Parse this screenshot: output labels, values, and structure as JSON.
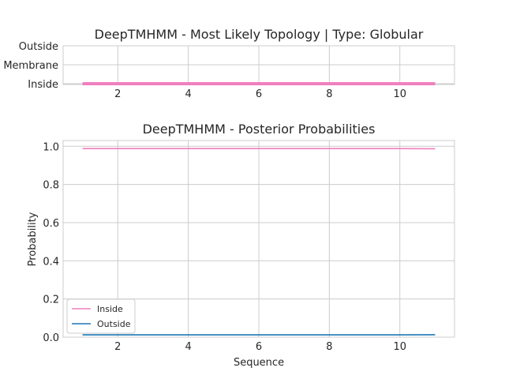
{
  "colors": {
    "inside": "#f07fbf",
    "outside": "#1f77b4",
    "grid": "#cccccc",
    "text": "#262626"
  },
  "chart_data": [
    {
      "type": "line",
      "title": "DeepTMHMM - Most Likely Topology | Type: Globular",
      "xlabel": "",
      "ylabel": "",
      "xlim": [
        0.45,
        11.55
      ],
      "xticks": [
        2,
        4,
        6,
        8,
        10
      ],
      "yticks": [
        "Inside",
        "Membrane",
        "Outside"
      ],
      "grid": true,
      "series": [
        {
          "x": [
            1,
            11
          ],
          "y": [
            "Inside",
            "Inside"
          ],
          "color": "#f07fbf"
        }
      ]
    },
    {
      "type": "line",
      "title": "DeepTMHMM - Posterior Probabilities",
      "xlabel": "Sequence",
      "ylabel": "Probability",
      "xlim": [
        0.45,
        11.55
      ],
      "ylim": [
        0.0,
        1.03
      ],
      "xticks": [
        2,
        4,
        6,
        8,
        10
      ],
      "yticks": [
        0.0,
        0.2,
        0.4,
        0.6,
        0.8,
        1.0
      ],
      "ytick_labels": [
        "0.0",
        "0.2",
        "0.4",
        "0.6",
        "0.8",
        "1.0"
      ],
      "grid": true,
      "legend": "lower-left",
      "series": [
        {
          "name": "Inside",
          "color": "#f07fbf",
          "x": [
            1,
            2,
            3,
            4,
            5,
            6,
            7,
            8,
            9,
            10,
            11
          ],
          "y": [
            0.988,
            0.988,
            0.988,
            0.988,
            0.988,
            0.988,
            0.988,
            0.988,
            0.988,
            0.988,
            0.987
          ]
        },
        {
          "name": "Outside",
          "color": "#1f77b4",
          "x": [
            1,
            2,
            3,
            4,
            5,
            6,
            7,
            8,
            9,
            10,
            11
          ],
          "y": [
            0.012,
            0.012,
            0.012,
            0.012,
            0.012,
            0.012,
            0.012,
            0.012,
            0.012,
            0.012,
            0.013
          ]
        }
      ]
    }
  ]
}
